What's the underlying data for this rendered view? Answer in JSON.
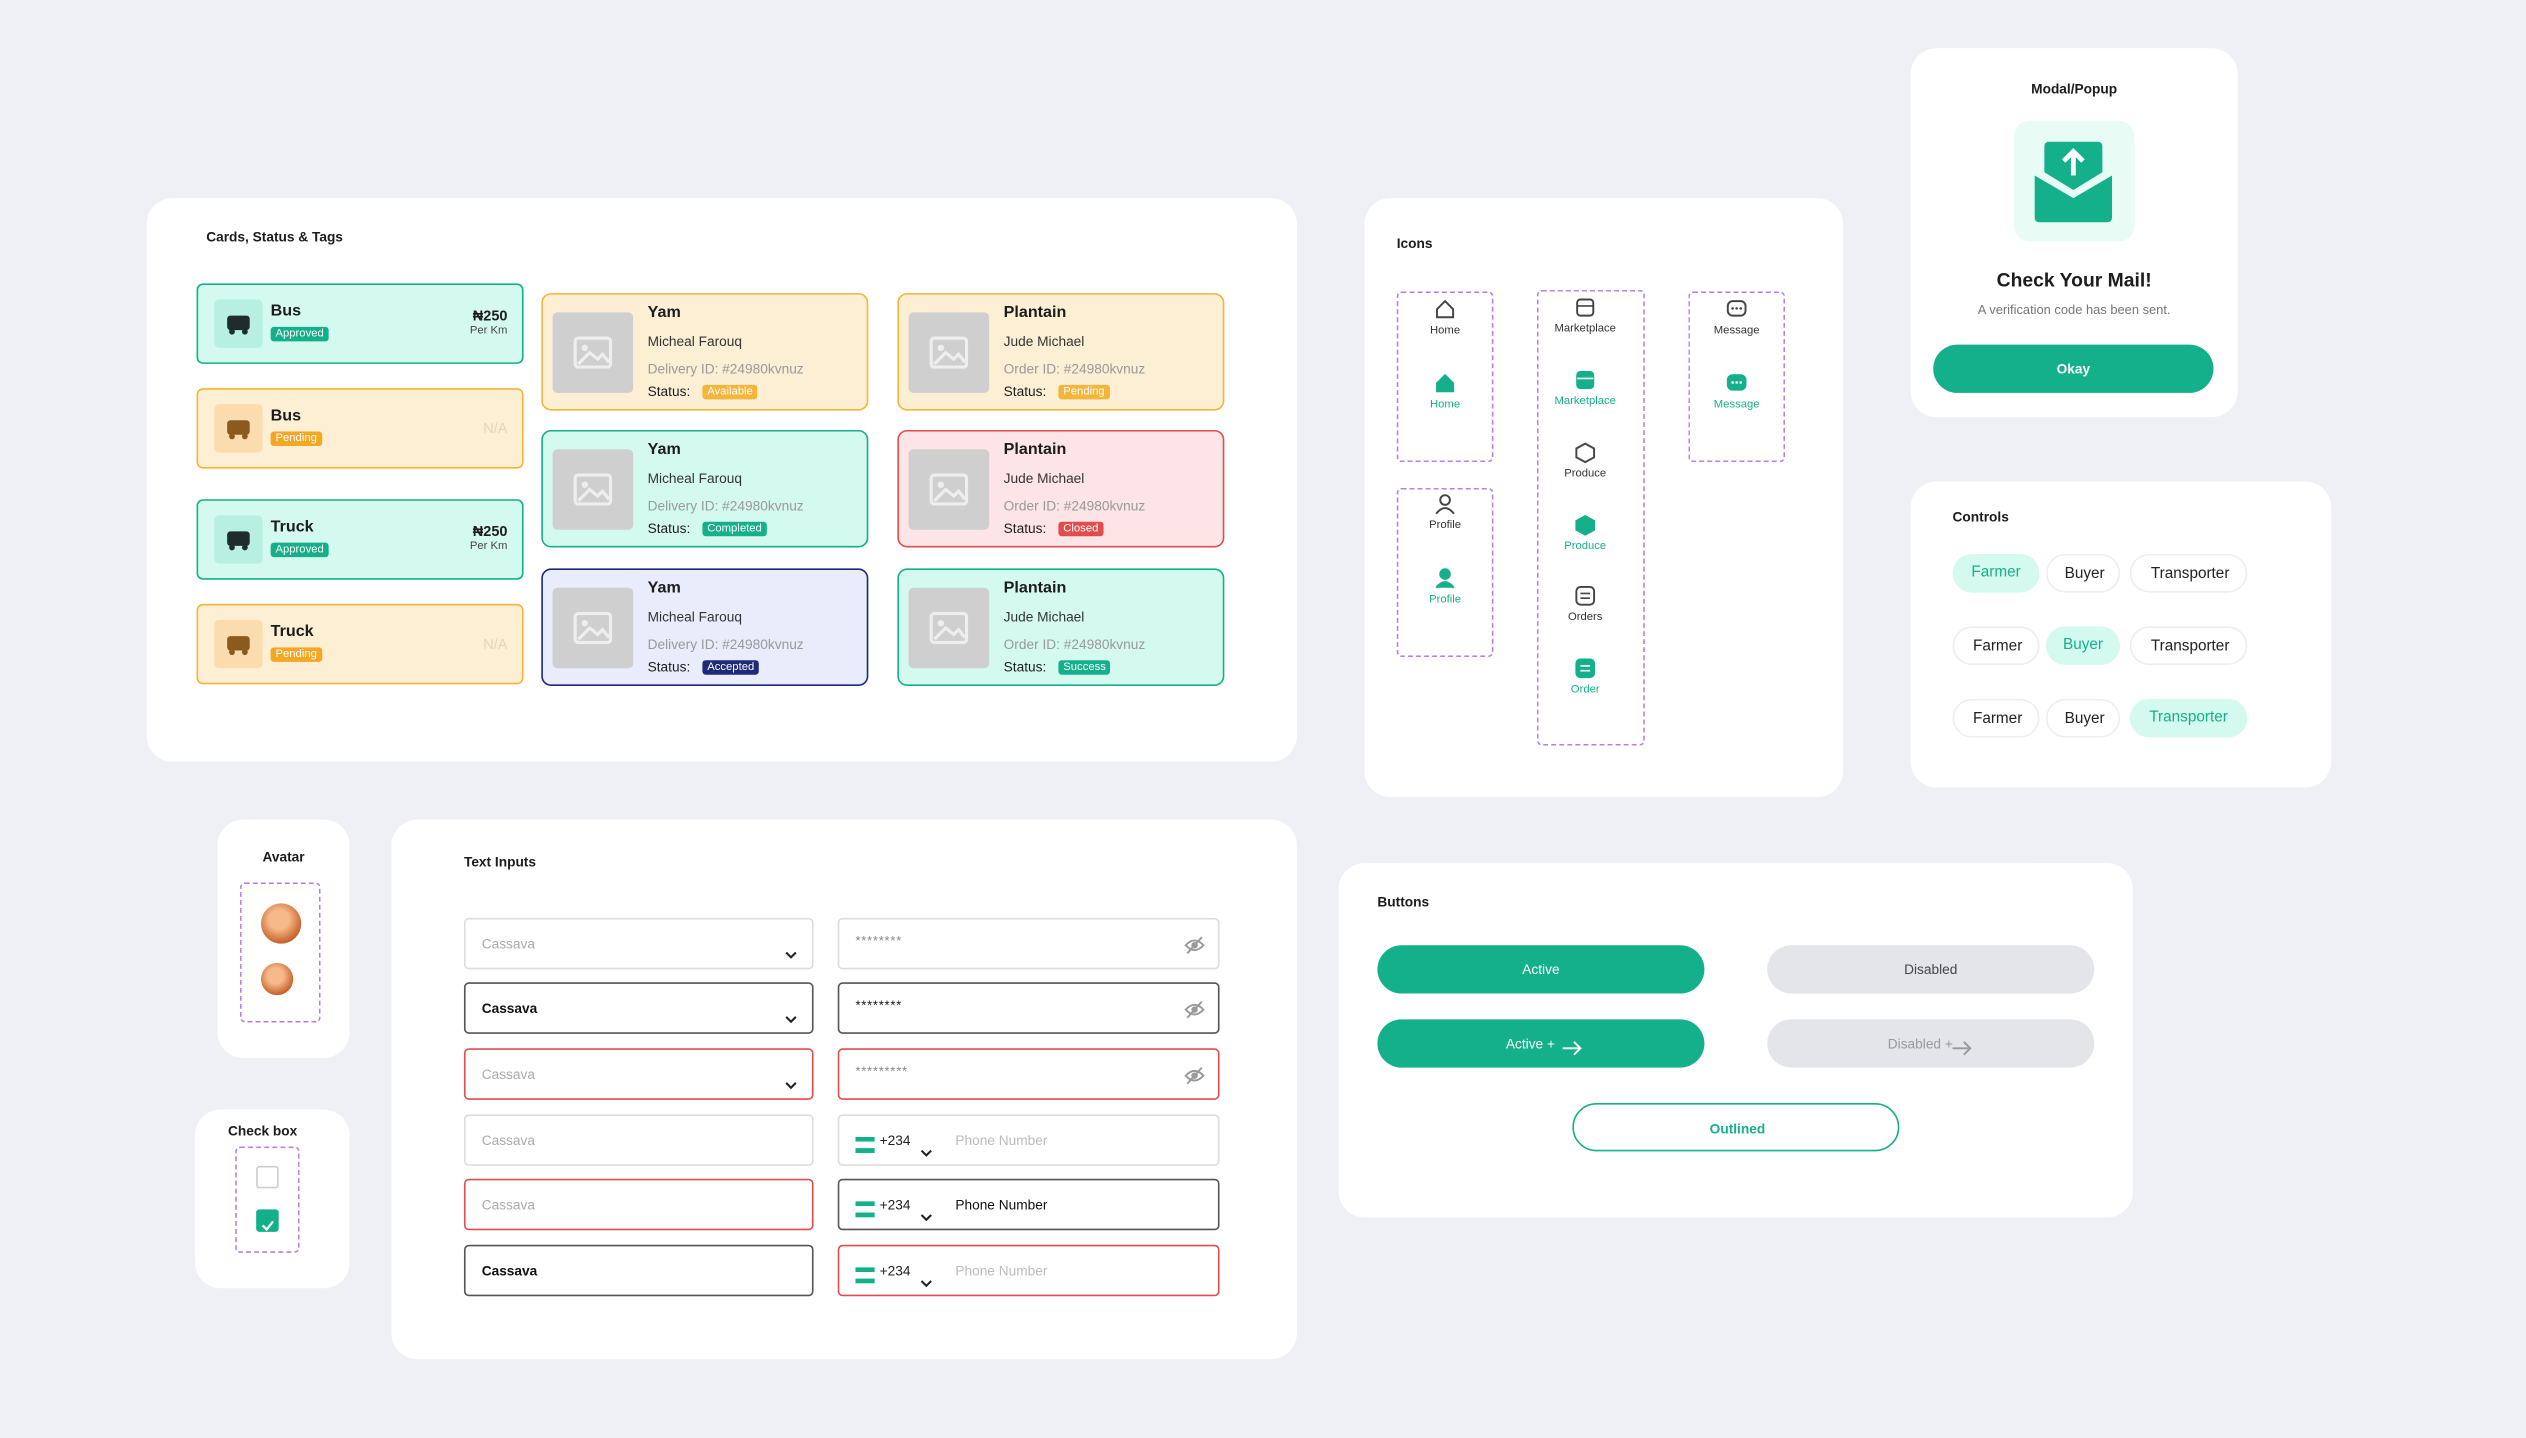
{
  "cards": {
    "title": "Cards, Status & Tags",
    "vehicles": [
      {
        "name": "Bus",
        "tag": "Approved",
        "price": "₦250",
        "unit": "Per Km"
      },
      {
        "name": "Bus",
        "tag": "Pending",
        "price": "N/A"
      },
      {
        "name": "Truck",
        "tag": "Approved",
        "price": "₦250",
        "unit": "Per Km"
      },
      {
        "name": "Truck",
        "tag": "Pending",
        "price": "N/A"
      }
    ],
    "products": [
      {
        "title": "Yam",
        "person": "Micheal Farouq",
        "id": "Delivery ID: #24980kvnuz",
        "status_label": "Status:",
        "status": "Available"
      },
      {
        "title": "Plantain",
        "person": "Jude Michael",
        "id": "Order ID: #24980kvnuz",
        "status_label": "Status:",
        "status": "Pending"
      },
      {
        "title": "Yam",
        "person": "Micheal Farouq",
        "id": "Delivery ID: #24980kvnuz",
        "status_label": "Status:",
        "status": "Completed"
      },
      {
        "title": "Plantain",
        "person": "Jude Michael",
        "id": "Order ID: #24980kvnuz",
        "status_label": "Status:",
        "status": "Closed"
      },
      {
        "title": "Yam",
        "person": "Micheal Farouq",
        "id": "Delivery ID: #24980kvnuz",
        "status_label": "Status:",
        "status": "Accepted"
      },
      {
        "title": "Plantain",
        "person": "Jude Michael",
        "id": "Order ID: #24980kvnuz",
        "status_label": "Status:",
        "status": "Success"
      }
    ]
  },
  "icons": {
    "title": "Icons",
    "items": [
      "Home",
      "Home",
      "Profile",
      "Profile",
      "Marketplace",
      "Marketplace",
      "Produce",
      "Produce",
      "Orders",
      "Order",
      "Message",
      "Message"
    ]
  },
  "modal": {
    "section_title": "Modal/Popup",
    "heading": "Check Your Mail!",
    "text": "A verification code has been sent.",
    "button": "Okay"
  },
  "controls": {
    "title": "Controls",
    "rows": [
      [
        "Farmer",
        "Buyer",
        "Transporter"
      ],
      [
        "Farmer",
        "Buyer",
        "Transporter"
      ],
      [
        "Farmer",
        "Buyer",
        "Transporter"
      ]
    ]
  },
  "avatar": {
    "title": "Avatar"
  },
  "checkbox": {
    "title": "Check box"
  },
  "text_inputs": {
    "title": "Text Inputs",
    "left": [
      "Cassava",
      "Cassava",
      "Cassava",
      "Cassava",
      "Cassava",
      "Cassava"
    ],
    "passwords": [
      "********",
      "********",
      "*********"
    ],
    "phones": [
      {
        "code": "+234",
        "placeholder": "Phone Number"
      },
      {
        "code": "+234",
        "placeholder": "Phone Number"
      },
      {
        "code": "+234",
        "placeholder": "Phone Number"
      }
    ]
  },
  "buttons": {
    "title": "Buttons",
    "active": "Active",
    "disabled": "Disabled",
    "active_plus": "Active +",
    "disabled_plus": "Disabled +",
    "outlined": "Outlined"
  }
}
